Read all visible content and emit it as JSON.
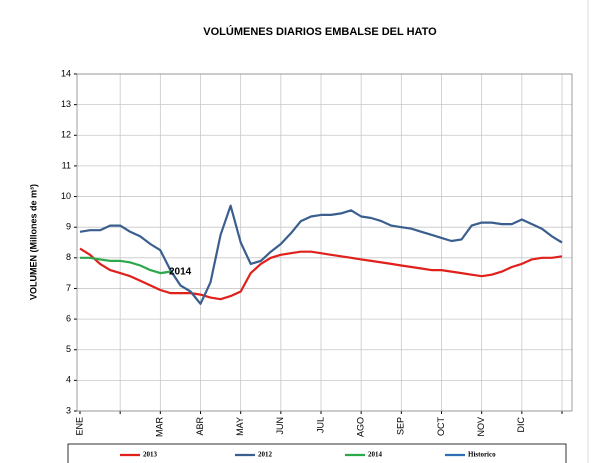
{
  "chart_data": {
    "type": "line",
    "title": "VOLÚMENES DIARIOS EMBALSE DEL HATO",
    "y_label": "VOLUMEN (Millones de m³)",
    "annotation": "2014",
    "categories": [
      "ENE",
      null,
      null,
      null,
      null,
      null,
      null,
      null,
      "MAR",
      null,
      null,
      null,
      "ABR",
      null,
      null,
      null,
      "MAY",
      null,
      null,
      null,
      "JUN",
      null,
      null,
      null,
      "JUL",
      null,
      null,
      null,
      "AGO",
      null,
      null,
      null,
      "SEP",
      null,
      null,
      null,
      "OCT",
      null,
      null,
      null,
      "NOV",
      null,
      null,
      null,
      "DIC",
      null,
      null,
      null,
      null
    ],
    "series": [
      {
        "name": "2013",
        "color": "#e0201b",
        "values": [
          8.3,
          8.1,
          7.8,
          7.6,
          7.5,
          7.4,
          7.25,
          7.1,
          6.95,
          6.85,
          6.85,
          6.85,
          6.8,
          6.7,
          6.65,
          6.75,
          6.9,
          7.5,
          7.8,
          8.0,
          8.1,
          8.15,
          8.2,
          8.2,
          8.15,
          8.1,
          8.05,
          8.0,
          7.95,
          7.9,
          7.85,
          7.8,
          7.75,
          7.7,
          7.65,
          7.6,
          7.6,
          7.55,
          7.5,
          7.45,
          7.4,
          7.45,
          7.55,
          7.7,
          7.8,
          7.95,
          8.0,
          8.0,
          8.05
        ]
      },
      {
        "name": "2012",
        "color": "#3a5f8f",
        "values": [
          8.85,
          8.9,
          8.9,
          9.05,
          9.05,
          8.85,
          8.7,
          8.45,
          8.25,
          7.6,
          7.1,
          6.9,
          6.5,
          7.2,
          8.75,
          9.7,
          8.5,
          7.8,
          7.9,
          8.2,
          8.45,
          8.8,
          9.2,
          9.35,
          9.4,
          9.4,
          9.45,
          9.55,
          9.35,
          9.3,
          9.2,
          9.05,
          9.0,
          8.95,
          8.85,
          8.75,
          8.65,
          8.55,
          8.6,
          9.05,
          9.15,
          9.15,
          9.1,
          9.1,
          9.25,
          9.1,
          8.95,
          8.7,
          8.5
        ]
      },
      {
        "name": "2014",
        "color": "#2ca84a",
        "values": [
          8.0,
          8.0,
          7.95,
          7.9,
          7.9,
          7.85,
          7.75,
          7.6,
          7.5,
          7.55,
          null,
          null,
          null,
          null,
          null,
          null,
          null,
          null,
          null,
          null,
          null,
          null,
          null,
          null,
          null,
          null,
          null,
          null,
          null,
          null,
          null,
          null,
          null,
          null,
          null,
          null,
          null,
          null,
          null,
          null,
          null,
          null,
          null,
          null,
          null,
          null,
          null,
          null,
          null
        ]
      },
      {
        "name": "Historico",
        "color": "#2e6fb5",
        "values": [
          null,
          null,
          null,
          null,
          null,
          null,
          null,
          null,
          null,
          null,
          null,
          null,
          null,
          null,
          null,
          null,
          null,
          null,
          null,
          null,
          null,
          null,
          null,
          null,
          null,
          null,
          null,
          null,
          null,
          null,
          null,
          null,
          null,
          null,
          null,
          null,
          null,
          null,
          null,
          null,
          null,
          null,
          null,
          null,
          null,
          null,
          null,
          null,
          null
        ]
      }
    ],
    "ylim": [
      3,
      14
    ],
    "yticks": [
      3,
      4,
      5,
      6,
      7,
      8,
      9,
      10,
      11,
      12,
      13,
      14
    ],
    "grid": true
  }
}
